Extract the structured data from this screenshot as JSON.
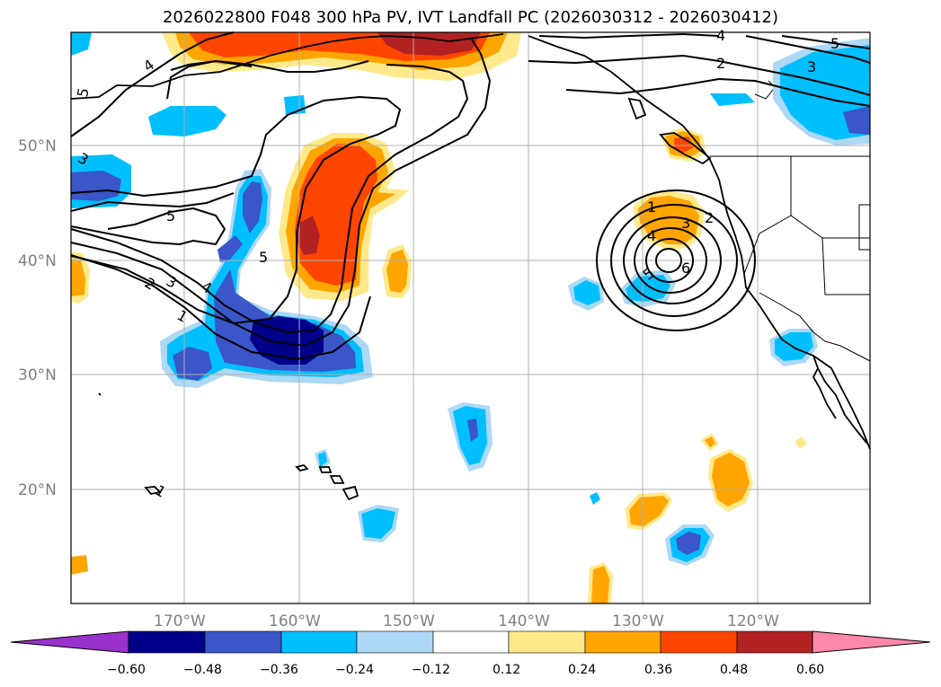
{
  "title": "2026022800 F048 300 hPa PV, IVT Landfall PC (2026030312 - 2026030412)",
  "longitude_labels": [
    "170°W",
    "160°W",
    "150°W",
    "140°W",
    "130°W",
    "120°W"
  ],
  "latitude_labels": [
    "50°N",
    "40°N",
    "30°N",
    "20°N"
  ],
  "colorbar": {
    "ticks": [
      "−0.60",
      "−0.48",
      "−0.36",
      "−0.24",
      "−0.12",
      "0.12",
      "0.24",
      "0.36",
      "0.48",
      "0.60"
    ],
    "colors": [
      "#9932cc",
      "#00008b",
      "#3a56c8",
      "#00bfff",
      "#add8f6",
      "#ffffff",
      "#ffe98a",
      "#ffa500",
      "#ff4500",
      "#b22222",
      "#ff88aa"
    ]
  },
  "contour_labels": [
    "4",
    "5",
    "3",
    "5",
    "5",
    "2",
    "3",
    "4",
    "1",
    "1",
    "3",
    "2",
    "4",
    "6",
    "5",
    "2",
    "3",
    "4",
    "5",
    "1"
  ],
  "colors": {
    "ocean": "#ffffff",
    "coast": "#000000",
    "grid": "#b0b0b0",
    "contour": "#000000"
  }
}
